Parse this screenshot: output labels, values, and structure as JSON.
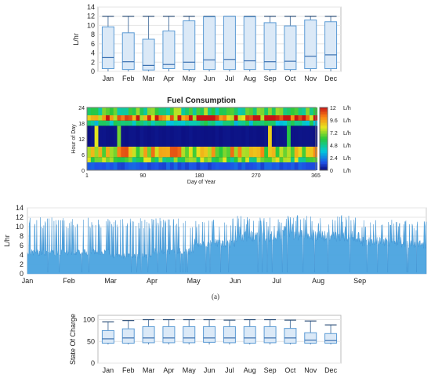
{
  "caption": "(a)",
  "chart_data": [
    {
      "type": "box",
      "ylabel": "L/hr",
      "ylim": [
        0,
        14
      ],
      "yticks": [
        0,
        2,
        4,
        6,
        8,
        10,
        12,
        14
      ],
      "categories": [
        "Jan",
        "Feb",
        "Mar",
        "Apr",
        "May",
        "Jun",
        "Jul",
        "Aug",
        "Sep",
        "Oct",
        "Nov",
        "Dec"
      ],
      "whisker_low": [
        0,
        0,
        0,
        0,
        0,
        0,
        0,
        0,
        0,
        0,
        0,
        0
      ],
      "q1": [
        0.6,
        0.4,
        0.3,
        0.6,
        0.4,
        0.4,
        0.4,
        0.4,
        0.4,
        0.4,
        0.6,
        0.6
      ],
      "median": [
        3.0,
        2.1,
        1.3,
        1.5,
        2.0,
        2.5,
        2.6,
        2.3,
        2.1,
        2.2,
        3.3,
        3.6
      ],
      "q3": [
        9.7,
        8.4,
        7.0,
        8.8,
        11.0,
        11.9,
        12.0,
        11.9,
        10.6,
        9.9,
        11.2,
        10.8
      ],
      "whisker_high": [
        12,
        12,
        12,
        12,
        12,
        12,
        12,
        12,
        12,
        12,
        12,
        12
      ],
      "color": "#5b9bd5"
    },
    {
      "type": "heatmap",
      "title": "Fuel Consumption",
      "ylabel": "Hour of Day",
      "xlabel": "Day of Year",
      "xlim": [
        1,
        365
      ],
      "ylim": [
        0,
        24
      ],
      "xticks": [
        1,
        90,
        180,
        270,
        365
      ],
      "yticks": [
        0,
        6,
        12,
        18,
        24
      ],
      "colorbar_ticks": [
        "12",
        "9.6",
        "7.2",
        "4.8",
        "2.4",
        "0"
      ],
      "colorbar_unit": "L/h",
      "colorbar_range": [
        0,
        12
      ],
      "bands": [
        {
          "hours": [
            0,
            3
          ],
          "level": 1.5
        },
        {
          "hours": [
            3,
            5
          ],
          "level": 6.5
        },
        {
          "hours": [
            5,
            9
          ],
          "level": 8.5
        },
        {
          "hours": [
            9,
            17
          ],
          "level": 0.2
        },
        {
          "hours": [
            17,
            19
          ],
          "level": 4.5
        },
        {
          "hours": [
            19,
            21
          ],
          "level": 10.5
        },
        {
          "hours": [
            21,
            24
          ],
          "level": 6.0
        }
      ]
    },
    {
      "type": "area",
      "ylabel": "L/hr",
      "ylim": [
        0,
        14
      ],
      "yticks": [
        0,
        2,
        4,
        6,
        8,
        10,
        12,
        14
      ],
      "x_labels": [
        "Jan",
        "Feb",
        "Mar",
        "Apr",
        "May",
        "Jun",
        "Jul",
        "Aug",
        "Sep"
      ],
      "months_shown": 9.6,
      "monthly_base": [
        4.5,
        4.6,
        3.8,
        4.8,
        6.5,
        8.0,
        8.2,
        8.0,
        6.8,
        6.2
      ],
      "monthly_peak": [
        12,
        12,
        12,
        12,
        12,
        12.5,
        12.5,
        12.5,
        12,
        11.5
      ],
      "color": "#4aa3df"
    },
    {
      "type": "box",
      "ylabel": "State Of Charge",
      "ylim": [
        0,
        110
      ],
      "yticks": [
        0,
        50,
        100
      ],
      "categories": [
        "Jan",
        "Feb",
        "Mar",
        "Apr",
        "May",
        "Jun",
        "Jul",
        "Aug",
        "Sep",
        "Oct",
        "Nov",
        "Dec"
      ],
      "whisker_low": [
        43,
        43,
        43,
        43,
        43,
        43,
        43,
        43,
        43,
        43,
        43,
        43
      ],
      "q1": [
        46,
        46,
        47,
        47,
        47,
        48,
        47,
        46,
        47,
        46,
        46,
        46
      ],
      "median": [
        56,
        58,
        58,
        58,
        58,
        58,
        58,
        58,
        58,
        58,
        53,
        52
      ],
      "q3": [
        75,
        79,
        84,
        84,
        84,
        84,
        84,
        84,
        84,
        80,
        70,
        68
      ],
      "whisker_high": [
        95,
        98,
        100,
        100,
        100,
        100,
        99,
        100,
        100,
        99,
        97,
        88
      ],
      "color": "#5b9bd5"
    }
  ]
}
